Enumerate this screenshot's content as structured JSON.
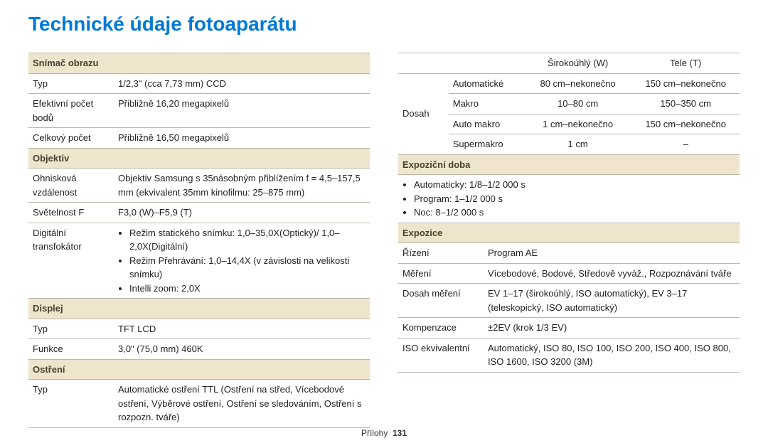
{
  "title": "Technické údaje fotoaparátu",
  "colors": {
    "title": "#0079d6",
    "section_header_bg": "#efe5cd",
    "section_header_text": "#4a4030",
    "border": "#bbb6ab",
    "text": "#222222",
    "background": "#ffffff"
  },
  "typography": {
    "title_fontsize_pt": 21,
    "body_fontsize_pt": 10,
    "title_weight": 600,
    "section_header_weight": 600
  },
  "left": {
    "s1": {
      "header": "Snímač obrazu",
      "r1": {
        "l": "Typ",
        "v": "1/2,3\" (cca 7,73 mm) CCD"
      },
      "r2": {
        "l": "Efektivní počet bodů",
        "v": "Přibližně 16,20 megapixelů"
      },
      "r3": {
        "l": "Celkový počet",
        "v": "Přibližně 16,50 megapixelů"
      }
    },
    "s2": {
      "header": "Objektiv",
      "r1": {
        "l": "Ohnisková vzdálenost",
        "v": "Objektiv Samsung s 35násobným přiblížením f = 4,5–157,5 mm (ekvivalent 35mm kinofilmu: 25–875 mm)"
      },
      "r2": {
        "l": "Světelnost F",
        "v": "F3,0 (W)–F5,9 (T)"
      },
      "r3": {
        "l": "Digitální transfokátor",
        "b1": "Režim statického snímku: 1,0–35,0X(Optický)/ 1,0–2,0X(Digitální)",
        "b2": "Režim Přehrávání: 1,0–14,4X (v závislosti na velikosti snímku)",
        "b3": "Intelli zoom: 2,0X"
      }
    },
    "s3": {
      "header": "Displej",
      "r1": {
        "l": "Typ",
        "v": "TFT LCD"
      },
      "r2": {
        "l": "Funkce",
        "v": "3,0\" (75,0 mm) 460K"
      }
    },
    "s4": {
      "header": "Ostření",
      "r1": {
        "l": "Typ",
        "v": "Automatické ostření TTL (Ostření na střed, Vícebodové ostření, Výběrové ostření, Ostření se sledováním, Ostření s rozpozn. tváře)"
      }
    }
  },
  "right": {
    "range": {
      "side_label": "Dosah",
      "hdr": {
        "c3": "Širokoúhlý (W)",
        "c4": "Tele (T)"
      },
      "rows": {
        "r1": {
          "c2": "Automatické",
          "c3": "80 cm–nekonečno",
          "c4": "150 cm–nekonečno"
        },
        "r2": {
          "c2": "Makro",
          "c3": "10–80 cm",
          "c4": "150–350 cm"
        },
        "r3": {
          "c2": "Auto makro",
          "c3": "1 cm–nekonečno",
          "c4": "150 cm–nekonečno"
        },
        "r4": {
          "c2": "Supermakro",
          "c3": "1 cm",
          "c4": "–"
        }
      }
    },
    "sE": {
      "header": "Expoziční doba",
      "b1": "Automaticky: 1/8–1/2 000 s",
      "b2": "Program: 1–1/2 000 s",
      "b3": "Noc: 8–1/2 000 s"
    },
    "sX": {
      "header": "Expozice",
      "r1": {
        "l": "Řízení",
        "v": "Program AE"
      },
      "r2": {
        "l": "Měření",
        "v": "Vícebodové, Bodové, Středově vyváž., Rozpoznávání tváře"
      },
      "r3": {
        "l": "Dosah měření",
        "v": "EV 1–17 (širokoúhlý, ISO automatický), EV 3–17 (teleskopický, ISO automatický)"
      },
      "r4": {
        "l": "Kompenzace",
        "v": "±2EV (krok 1/3 EV)"
      },
      "r5": {
        "l": "ISO ekvivalentní",
        "v": "Automatický, ISO 80, ISO 100, ISO 200, ISO 400, ISO 800, ISO 1600, ISO 3200 (3M)"
      }
    }
  },
  "footer": {
    "section": "Přílohy",
    "page": "131"
  }
}
